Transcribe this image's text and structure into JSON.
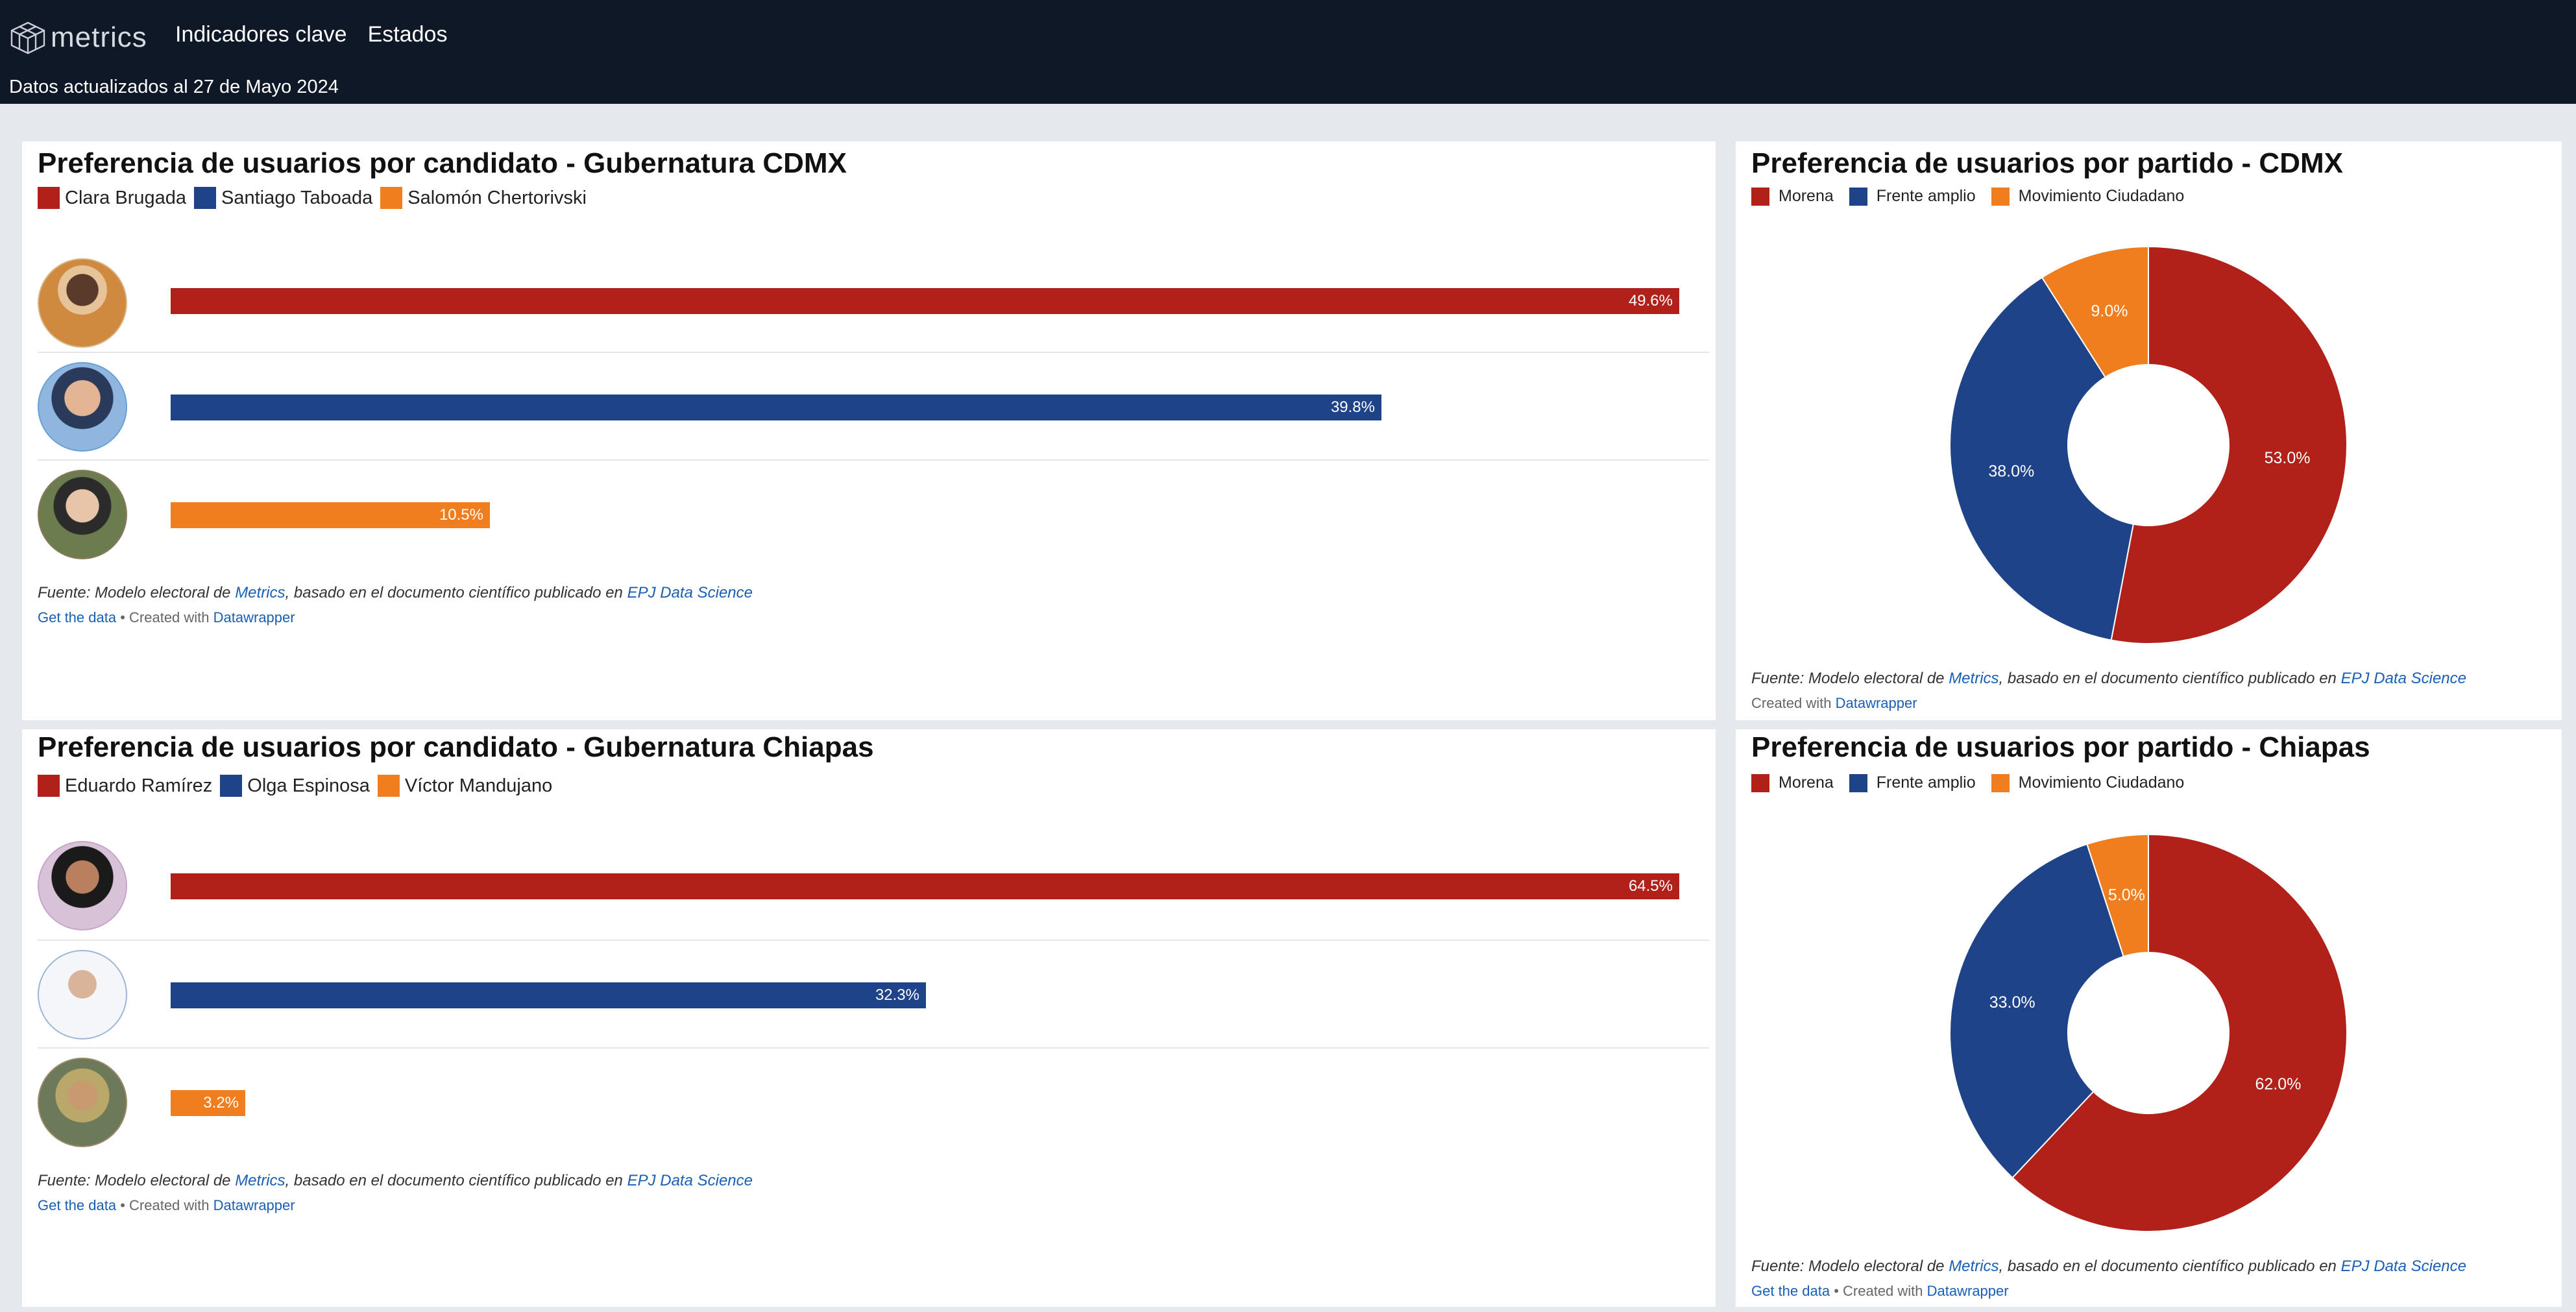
{
  "header": {
    "brand": "metrics",
    "nav": [
      "Indicadores clave",
      "Estados"
    ],
    "updated": "Datos actualizados al 27 de Mayo 2024"
  },
  "colors": {
    "red": "#b2201a",
    "blue": "#1e4389",
    "orange": "#f07d1e"
  },
  "panels": {
    "cdmx_candidates": {
      "title": "Preferencia de usuarios por candidato - Gubernatura CDMX",
      "legend": [
        "Clara Brugada",
        "Santiago Taboada",
        "Salomón Chertorivski"
      ],
      "source_prefix": "Fuente: Modelo electoral de ",
      "source_link1": "Metrics",
      "source_mid": ", basado en el documento científico publicado en ",
      "source_link2": "EPJ Data Science",
      "get_data": "Get the data",
      "created_with": " • Created with ",
      "datawrapper": "Datawrapper"
    },
    "cdmx_parties": {
      "title": "Preferencia de usuarios por partido - CDMX",
      "legend": [
        "Morena",
        "Frente amplio",
        "Movimiento Ciudadano"
      ],
      "source_prefix": "Fuente: Modelo electoral de ",
      "source_link1": "Metrics",
      "source_mid": ", basado en el documento científico publicado en ",
      "source_link2": "EPJ Data Science",
      "created_with": "Created with ",
      "datawrapper": "Datawrapper"
    },
    "chiapas_candidates": {
      "title": "Preferencia de usuarios por candidato - Gubernatura Chiapas",
      "legend": [
        "Eduardo Ramírez",
        "Olga Espinosa",
        "Víctor Mandujano"
      ],
      "source_prefix": "Fuente: Modelo electoral de ",
      "source_link1": "Metrics",
      "source_mid": ", basado en el documento científico publicado en ",
      "source_link2": "EPJ Data Science",
      "get_data": "Get the data",
      "created_with": " • Created with ",
      "datawrapper": "Datawrapper"
    },
    "chiapas_parties": {
      "title": "Preferencia de usuarios por partido - Chiapas",
      "legend": [
        "Morena",
        "Frente amplio",
        "Movimiento Ciudadano"
      ],
      "source_prefix": "Fuente: Modelo electoral de ",
      "source_link1": "Metrics",
      "source_mid": ", basado en el documento científico publicado en ",
      "source_link2": "EPJ Data Science",
      "get_data": "Get the data",
      "created_with": " • Created with ",
      "datawrapper": "Datawrapper"
    }
  },
  "chart_data": [
    {
      "type": "bar",
      "categories": [
        "Clara Brugada",
        "Santiago Taboada",
        "Salomón Chertorivski"
      ],
      "values": [
        49.6,
        39.8,
        10.5
      ],
      "labels": [
        "49.6%",
        "39.8%",
        "10.5%"
      ],
      "title": "Preferencia de usuarios por candidato - Gubernatura CDMX",
      "xlim": [
        0,
        49.6
      ]
    },
    {
      "type": "pie",
      "categories": [
        "Morena",
        "Frente amplio",
        "Movimiento Ciudadano"
      ],
      "values": [
        53.0,
        38.0,
        9.0
      ],
      "labels": [
        "53.0%",
        "38.0%",
        "9.0%"
      ],
      "title": "Preferencia de usuarios por partido - CDMX"
    },
    {
      "type": "bar",
      "categories": [
        "Eduardo Ramírez",
        "Olga Espinosa",
        "Víctor Mandujano"
      ],
      "values": [
        64.5,
        32.3,
        3.2
      ],
      "labels": [
        "64.5%",
        "32.3%",
        "3.2%"
      ],
      "title": "Preferencia de usuarios por candidato - Gubernatura Chiapas",
      "xlim": [
        0,
        64.5
      ]
    },
    {
      "type": "pie",
      "categories": [
        "Morena",
        "Frente amplio",
        "Movimiento Ciudadano"
      ],
      "values": [
        62.0,
        33.0,
        5.0
      ],
      "labels": [
        "62.0%",
        "33.0%",
        "5.0%"
      ],
      "title": "Preferencia de usuarios por partido - Chiapas"
    }
  ]
}
